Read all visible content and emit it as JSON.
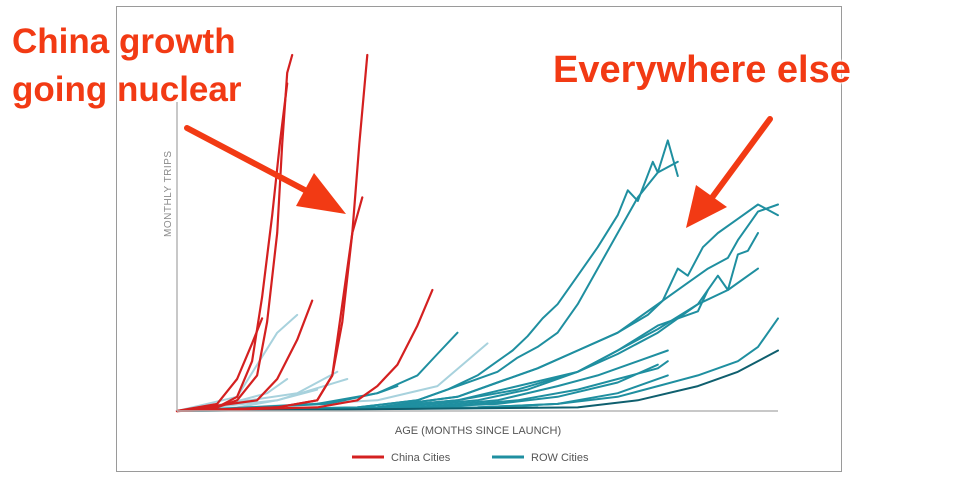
{
  "annotations": {
    "left_line1": "China growth",
    "left_line2": "going nuclear",
    "right": "Everywhere else"
  },
  "chart_data": {
    "type": "line",
    "title": "",
    "xlabel": "AGE (MONTHS SINCE LAUNCH)",
    "ylabel": "MONTHLY TRIPS",
    "xlim": [
      0,
      60
    ],
    "ylim": [
      0,
      100
    ],
    "grid": false,
    "legend_position": "bottom-center",
    "legend": [
      {
        "label": "China Cities",
        "color": "#d42020"
      },
      {
        "label": "ROW Cities",
        "color": "#1f8fa0"
      }
    ],
    "colors": {
      "china": "#d42020",
      "row": "#1f8fa0",
      "row_light": "#a8d2dd",
      "row_dark": "#0f5f6e",
      "annotation": "#f23a14"
    },
    "series": [
      {
        "group": "China Cities",
        "x": [
          0,
          4,
          6,
          8,
          9,
          10,
          10.5,
          11,
          11.5
        ],
        "y": [
          0,
          1,
          3,
          10,
          25,
          50,
          75,
          95,
          100
        ]
      },
      {
        "group": "China Cities",
        "x": [
          0,
          4,
          6,
          7.5,
          8.5,
          9.5,
          10.3,
          11
        ],
        "y": [
          0,
          1,
          4,
          14,
          32,
          55,
          76,
          92
        ]
      },
      {
        "group": "China Cities",
        "x": [
          0,
          4,
          6,
          7.5,
          8.5
        ],
        "y": [
          0,
          2,
          9,
          19,
          26
        ]
      },
      {
        "group": "China Cities",
        "x": [
          0,
          8,
          10,
          12,
          13.5
        ],
        "y": [
          0,
          3,
          9,
          20,
          31
        ]
      },
      {
        "group": "China Cities",
        "x": [
          0,
          10,
          14,
          15.5,
          16.5,
          17.5,
          18.2,
          19
        ],
        "y": [
          0,
          1,
          3,
          10,
          25,
          50,
          75,
          100
        ]
      },
      {
        "group": "China Cities",
        "x": [
          0,
          10,
          14,
          15.5,
          16.5,
          17.5,
          18.5
        ],
        "y": [
          0,
          1,
          3,
          10,
          30,
          50,
          60
        ]
      },
      {
        "group": "China Cities",
        "x": [
          0,
          14,
          18,
          20,
          22,
          24,
          25.5
        ],
        "y": [
          0,
          1,
          3,
          7,
          13,
          24,
          34
        ]
      },
      {
        "group": "ROW Cities",
        "x": [
          0,
          15,
          20,
          24,
          26,
          28
        ],
        "y": [
          0,
          2,
          5,
          10,
          16,
          22
        ]
      },
      {
        "group": "ROW Cities",
        "x": [
          0,
          14,
          20,
          22
        ],
        "y": [
          0,
          2,
          5,
          7
        ]
      },
      {
        "group": "ROW Cities",
        "x": [
          0,
          18,
          24,
          27,
          30,
          32,
          33.5,
          35,
          36.5,
          38,
          40,
          42,
          44,
          45,
          46,
          47.5,
          48,
          49,
          50
        ],
        "y": [
          0,
          1,
          3,
          6,
          10,
          14,
          17,
          21,
          26,
          30,
          38,
          46,
          55,
          62,
          59,
          70,
          67,
          76,
          66
        ]
      },
      {
        "group": "ROW Cities",
        "x": [
          0,
          18,
          24,
          28,
          32,
          34,
          36,
          38,
          40,
          42,
          44,
          46,
          48,
          50
        ],
        "y": [
          0,
          1,
          3,
          7,
          11,
          15,
          18,
          22,
          30,
          40,
          50,
          60,
          67,
          70
        ]
      },
      {
        "group": "ROW Cities",
        "x": [
          0,
          20,
          28,
          32,
          36,
          40,
          44,
          47,
          48.5,
          50,
          51,
          52.5,
          54,
          56,
          58,
          60
        ],
        "y": [
          0,
          1,
          4,
          8,
          12,
          17,
          22,
          27,
          31,
          40,
          38,
          46,
          50,
          54,
          58,
          55
        ]
      },
      {
        "group": "ROW Cities",
        "x": [
          0,
          20,
          28,
          32,
          36,
          40,
          44,
          48,
          51,
          53,
          55,
          56,
          57,
          58,
          60
        ],
        "y": [
          0,
          1,
          4,
          8,
          12,
          17,
          22,
          30,
          36,
          40,
          43,
          48,
          52,
          56,
          58
        ]
      },
      {
        "group": "ROW Cities",
        "x": [
          0,
          20,
          28,
          34,
          40,
          44,
          48,
          50,
          52,
          54,
          55,
          56,
          57,
          58
        ],
        "y": [
          0,
          1,
          3,
          7,
          11,
          16,
          22,
          26,
          30,
          38,
          34,
          44,
          45,
          50
        ]
      },
      {
        "group": "ROW Cities",
        "x": [
          0,
          22,
          30,
          35,
          40,
          44,
          48,
          52,
          55,
          58
        ],
        "y": [
          0,
          1,
          3,
          6,
          11,
          17,
          23,
          30,
          34,
          40
        ]
      },
      {
        "group": "ROW Cities",
        "x": [
          0,
          20,
          28,
          34,
          40,
          44,
          48,
          52,
          53
        ],
        "y": [
          0,
          1,
          3,
          6,
          11,
          17,
          24,
          28,
          34
        ]
      },
      {
        "group": "ROW Cities",
        "x": [
          0,
          24,
          32,
          38,
          42,
          46,
          49
        ],
        "y": [
          0,
          1,
          3,
          7,
          10,
          14,
          17
        ]
      },
      {
        "group": "ROW Cities",
        "x": [
          0,
          26,
          34,
          40,
          44,
          48,
          49
        ],
        "y": [
          0,
          1,
          3,
          6,
          9,
          12,
          14
        ]
      },
      {
        "group": "ROW Cities",
        "x": [
          0,
          24,
          32,
          38,
          44,
          48
        ],
        "y": [
          0,
          1,
          2,
          4,
          8,
          13
        ]
      },
      {
        "group": "ROW Cities",
        "x": [
          0,
          30,
          38,
          44,
          48,
          52,
          56,
          58,
          60
        ],
        "y": [
          0,
          1,
          2,
          4,
          7,
          10,
          14,
          18,
          26
        ]
      },
      {
        "group": "ROW Cities",
        "x": [
          0,
          30,
          38,
          44,
          49
        ],
        "y": [
          0,
          1,
          2,
          5,
          10
        ]
      },
      {
        "group": "ROW Cities",
        "x": [
          0,
          36
        ],
        "y": [
          0,
          1
        ]
      },
      {
        "group": "ROW Cities light",
        "x": [
          0,
          6,
          10,
          12
        ],
        "y": [
          0,
          4,
          22,
          27
        ]
      },
      {
        "group": "ROW Cities light",
        "x": [
          0,
          5,
          9,
          11
        ],
        "y": [
          0,
          2,
          5,
          9
        ]
      },
      {
        "group": "ROW Cities light",
        "x": [
          0,
          12,
          16
        ],
        "y": [
          0,
          5,
          11
        ]
      },
      {
        "group": "ROW Cities light",
        "x": [
          0,
          10,
          14
        ],
        "y": [
          0,
          3,
          6
        ]
      },
      {
        "group": "ROW Cities light",
        "x": [
          0,
          20,
          26,
          31
        ],
        "y": [
          0,
          3,
          7,
          19
        ]
      },
      {
        "group": "ROW Cities light",
        "x": [
          0,
          6,
          10,
          17
        ],
        "y": [
          0,
          1,
          3,
          9
        ]
      },
      {
        "group": "ROW Cities dark",
        "x": [
          0,
          40,
          46,
          52,
          56,
          60
        ],
        "y": [
          0,
          1,
          3,
          7,
          11,
          17
        ]
      }
    ]
  }
}
